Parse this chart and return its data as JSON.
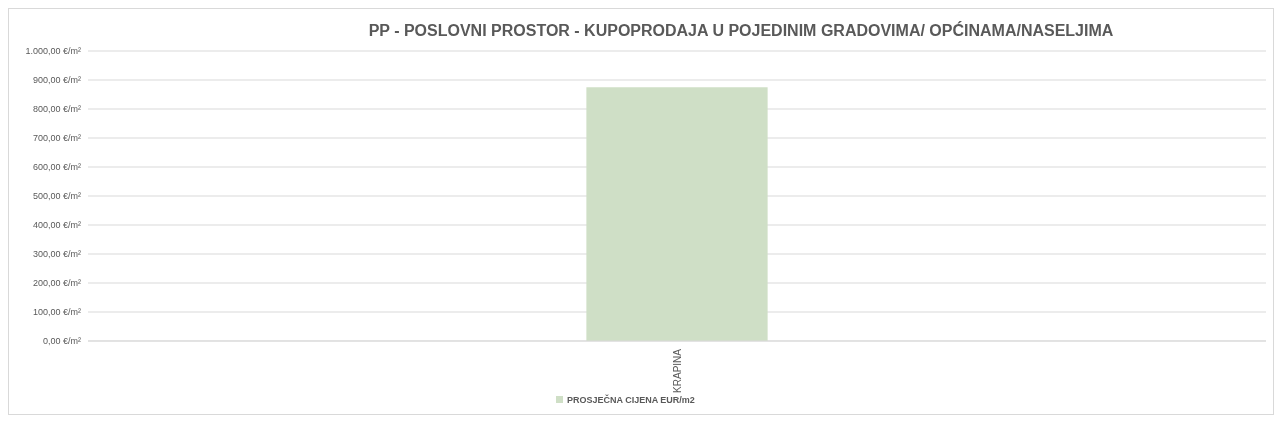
{
  "chart_data": {
    "type": "bar",
    "title": "PP - POSLOVNI PROSTOR - KUPOPRODAJA U POJEDINIM GRADOVIMA/ OPĆINAMA/NASELJIMA",
    "categories": [
      "KRAPINA"
    ],
    "series": [
      {
        "name": "PROSJEČNA CIJENA EUR/m2",
        "color": "#cfdfc6",
        "values": [
          875
        ]
      }
    ],
    "ylim": [
      0,
      1000
    ],
    "yticks": [
      {
        "value": 0,
        "label": "0,00 €/m²"
      },
      {
        "value": 100,
        "label": "100,00 €/m²"
      },
      {
        "value": 200,
        "label": "200,00 €/m²"
      },
      {
        "value": 300,
        "label": "300,00 €/m²"
      },
      {
        "value": 400,
        "label": "400,00 €/m²"
      },
      {
        "value": 500,
        "label": "500,00 €/m²"
      },
      {
        "value": 600,
        "label": "600,00 €/m²"
      },
      {
        "value": 700,
        "label": "700,00 €/m²"
      },
      {
        "value": 800,
        "label": "800,00 €/m²"
      },
      {
        "value": 900,
        "label": "900,00 €/m²"
      },
      {
        "value": 1000,
        "label": "1.000,00 €/m²"
      }
    ],
    "grid": "y",
    "legend": "bottom"
  }
}
